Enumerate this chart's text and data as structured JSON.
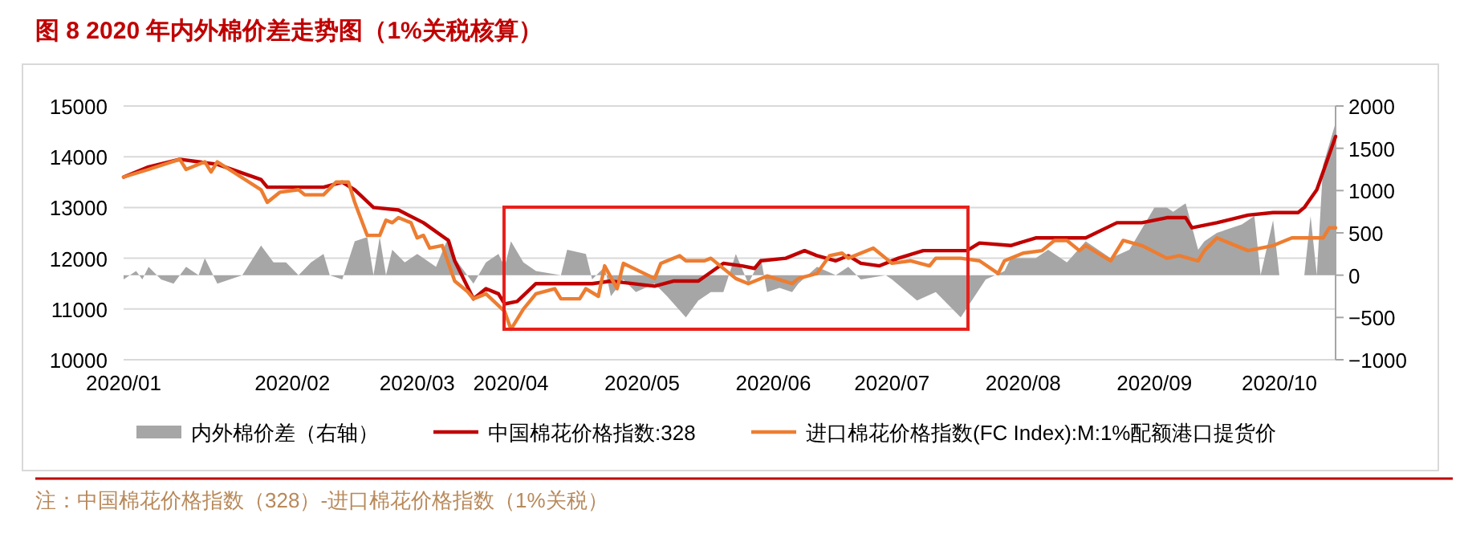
{
  "chart_data": {
    "type": "line",
    "title": "图 8 2020 年内外棉价差走势图（1%关税核算）",
    "categories": [
      "2020/01",
      null,
      null,
      null,
      null,
      null,
      null,
      null,
      null,
      null,
      null,
      null,
      null,
      null,
      null,
      null,
      null,
      null,
      null,
      null,
      null,
      null,
      null,
      null,
      null,
      null,
      null,
      "2020/02",
      null,
      null,
      null,
      null,
      null,
      null,
      null,
      null,
      null,
      null,
      null,
      null,
      null,
      null,
      null,
      null,
      null,
      null,
      null,
      "2020/03",
      null,
      null,
      null,
      null,
      null,
      null,
      null,
      null,
      null,
      null,
      null,
      null,
      null,
      null,
      "2020/04",
      null,
      null,
      null,
      null,
      null,
      null,
      null,
      null,
      null,
      null,
      null,
      null,
      null,
      null,
      null,
      null,
      null,
      null,
      null,
      null,
      "2020/05",
      null,
      null,
      null,
      null,
      null,
      null,
      null,
      null,
      null,
      null,
      null,
      null,
      null,
      null,
      null,
      null,
      null,
      null,
      null,
      null,
      "2020/06",
      null,
      null,
      null,
      null,
      null,
      null,
      null,
      null,
      null,
      null,
      null,
      null,
      null,
      null,
      null,
      null,
      null,
      null,
      "2020/07",
      null,
      null,
      null,
      null,
      null,
      null,
      null,
      null,
      null,
      null,
      null,
      null,
      null,
      null,
      null,
      null,
      null,
      null,
      null,
      null,
      "2020/08",
      null,
      null,
      null,
      null,
      null,
      null,
      null,
      null,
      null,
      null,
      null,
      null,
      null,
      null,
      null,
      null,
      null,
      null,
      null,
      null,
      "2020/09",
      null,
      null,
      null,
      null,
      null,
      null,
      null,
      null,
      null,
      null,
      null,
      null,
      null,
      null,
      null,
      null,
      null,
      null,
      null,
      "2020/10",
      null,
      null,
      null,
      null,
      null,
      null,
      null,
      null,
      null
    ],
    "ylim": [
      10000,
      15000
    ],
    "yticks": [
      10000,
      11000,
      12000,
      13000,
      14000,
      15000
    ],
    "y2lim": [
      -1000,
      2000
    ],
    "y2ticks": [
      -1000,
      -500,
      0,
      500,
      1000,
      1500,
      2000
    ],
    "grid": "y",
    "legend": "bottom",
    "series": [
      {
        "name": "内外棉价差（右轴）",
        "type": "area",
        "axis": "y2",
        "color": "#a6a6a6",
        "values": [
          -50,
          null,
          50,
          -50,
          100,
          null,
          -50,
          null,
          -100,
          null,
          100,
          null,
          0,
          200,
          null,
          -100,
          null,
          null,
          null,
          0,
          null,
          null,
          350,
          null,
          150,
          null,
          150,
          null,
          0,
          null,
          150,
          null,
          250,
          0,
          null,
          -50,
          null,
          400,
          null,
          450,
          0,
          450,
          0,
          300,
          null,
          150,
          null,
          250,
          200,
          null,
          100,
          null,
          450,
          200,
          null,
          null,
          -100,
          null,
          150,
          null,
          250,
          100,
          400,
          null,
          150,
          null,
          50,
          null,
          null,
          null,
          0,
          300,
          null,
          null,
          250,
          -50,
          null,
          100,
          -250,
          null,
          -50,
          null,
          -200,
          null,
          null,
          -100,
          null,
          -250,
          null,
          null,
          -500,
          null,
          -300,
          null,
          -200,
          null,
          -200,
          null,
          250,
          null,
          -100,
          null,
          200,
          -200,
          null,
          -150,
          null,
          -200,
          -100,
          null,
          null,
          100,
          null,
          null,
          0,
          null,
          100,
          null,
          -50,
          null,
          null,
          null,
          0,
          -50,
          null,
          null,
          null,
          -300,
          null,
          null,
          -200,
          null,
          -350,
          null,
          -500,
          null,
          null,
          null,
          -50,
          null,
          null,
          50,
          200,
          null,
          null,
          null,
          200,
          null,
          300,
          null,
          null,
          150,
          null,
          null,
          400,
          null,
          null,
          null,
          200,
          null,
          null,
          300,
          null,
          null,
          null,
          800,
          null,
          800,
          750,
          null,
          850,
          null,
          300,
          400,
          null,
          500,
          null,
          null,
          null,
          600,
          null,
          700,
          0,
          null,
          650,
          0,
          null,
          null,
          null,
          0,
          700,
          0,
          1300,
          null,
          1800
        ]
      },
      {
        "name": "中国棉花价格指数:328",
        "color": "#c00000",
        "values": [
          13600,
          null,
          null,
          null,
          13800,
          null,
          null,
          null,
          null,
          13950,
          null,
          null,
          13900,
          null,
          null,
          13850,
          null,
          null,
          null,
          null,
          null,
          null,
          13550,
          13400,
          null,
          null,
          null,
          null,
          null,
          null,
          null,
          null,
          13400,
          null,
          null,
          13500,
          null,
          13350,
          null,
          null,
          13000,
          null,
          null,
          null,
          12950,
          null,
          null,
          null,
          12700,
          null,
          null,
          null,
          12350,
          11950,
          null,
          null,
          11200,
          null,
          11400,
          null,
          11300,
          11100,
          null,
          11150,
          null,
          null,
          11500,
          null,
          null,
          null,
          null,
          null,
          null,
          null,
          null,
          11500,
          null,
          null,
          11550,
          null,
          null,
          null,
          null,
          null,
          null,
          11450,
          null,
          null,
          11550,
          null,
          null,
          null,
          11550,
          null,
          null,
          null,
          11900,
          null,
          null,
          11850,
          null,
          11800,
          11950,
          null,
          null,
          null,
          12000,
          null,
          null,
          12150,
          null,
          12050,
          null,
          null,
          11950,
          null,
          12050,
          null,
          11900,
          null,
          null,
          11850,
          null,
          null,
          12000,
          null,
          null,
          null,
          12150,
          null,
          null,
          12150,
          null,
          null,
          null,
          12150,
          null,
          12300,
          null,
          null,
          null,
          null,
          12250,
          null,
          null,
          null,
          12400,
          null,
          null,
          null,
          null,
          null,
          null,
          null,
          12400,
          null,
          null,
          null,
          null,
          12700,
          null,
          null,
          null,
          12700,
          null,
          null,
          null,
          12800,
          null,
          null,
          12800,
          12600,
          null,
          null,
          null,
          12700,
          null,
          null,
          null,
          null,
          12850,
          null,
          null,
          null,
          12900,
          null,
          null,
          null,
          12900,
          13000,
          null,
          13350,
          null,
          null,
          14400
        ]
      },
      {
        "name": "进口棉花价格指数(FC Index):M:1%配额港口提货价",
        "color": "#ed7d31",
        "values": [
          13600,
          null,
          null,
          null,
          13750,
          null,
          null,
          null,
          null,
          13950,
          13750,
          null,
          null,
          13900,
          13700,
          13900,
          null,
          null,
          null,
          null,
          null,
          null,
          13350,
          13100,
          null,
          13300,
          null,
          null,
          13350,
          13250,
          null,
          null,
          13250,
          null,
          13500,
          null,
          13500,
          13100,
          null,
          12450,
          null,
          12450,
          12750,
          12700,
          12800,
          null,
          12700,
          12400,
          12450,
          12200,
          null,
          12250,
          null,
          11550,
          null,
          11350,
          11200,
          null,
          11300,
          null,
          null,
          10950,
          10600,
          null,
          11000,
          null,
          11300,
          null,
          null,
          11400,
          11200,
          null,
          null,
          11200,
          11400,
          null,
          11250,
          11850,
          null,
          11400,
          11900,
          null,
          null,
          null,
          null,
          11600,
          11900,
          null,
          null,
          12050,
          11950,
          null,
          null,
          11950,
          12000,
          null,
          null,
          null,
          11600,
          null,
          11500,
          null,
          null,
          11650,
          null,
          null,
          null,
          11500,
          11600,
          null,
          null,
          11700,
          null,
          12050,
          null,
          12100,
          12000,
          null,
          null,
          null,
          12200,
          null,
          12000,
          11900,
          null,
          null,
          11950,
          null,
          null,
          11850,
          12000,
          null,
          null,
          null,
          12000,
          null,
          null,
          11950,
          null,
          null,
          11700,
          11950,
          null,
          null,
          12100,
          null,
          null,
          12150,
          null,
          12350,
          null,
          12350,
          null,
          12150,
          12250,
          null,
          null,
          null,
          11950,
          null,
          12350,
          null,
          null,
          12250,
          null,
          null,
          null,
          12000,
          null,
          12050,
          null,
          null,
          11950,
          12150,
          null,
          12400,
          null,
          12300,
          null,
          null,
          12150,
          null,
          null,
          null,
          12250,
          null,
          null,
          12400,
          null,
          null,
          null,
          null,
          12400,
          12600,
          12600
        ]
      }
    ],
    "annotations": [
      "注：中国棉花价格指数（328）-进口棉花价格指数（1%关税）"
    ]
  }
}
